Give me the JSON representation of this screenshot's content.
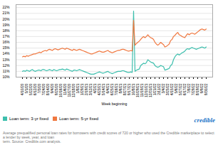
{
  "chart_data": {
    "type": "line",
    "xlabel": "Week beginning",
    "categories": [
      "4/10/20",
      null,
      null,
      "5/1/20",
      null,
      null,
      "5/22/20",
      null,
      null,
      "6/12/20",
      null,
      null,
      "7/3/20",
      null,
      null,
      "7/24/20",
      null,
      null,
      "8/14/20",
      null,
      null,
      "9/4/20",
      null,
      null,
      "9/25/20",
      null,
      null,
      "10/16/20",
      null,
      null,
      "11/6/20",
      null,
      null,
      "11/27/20",
      null,
      null,
      "12/18/20",
      null,
      null,
      "1/8/21",
      null,
      null,
      "1/29/21",
      null,
      null,
      "2/19/21",
      null,
      null,
      "3/12/21",
      null,
      null,
      "4/2/21",
      null,
      null,
      "4/23/21",
      null,
      null,
      "5/14/21",
      null,
      null,
      "6/4/21",
      null,
      null,
      "6/25/21",
      null,
      null,
      "7/16/21",
      null,
      null,
      "8/6/21",
      null,
      null,
      "8/27/21",
      null,
      null,
      "9/17/21",
      null,
      null,
      "10/8/21",
      null,
      null,
      "10/29/21",
      null,
      null,
      "11/19/21",
      null,
      null,
      "12/10/21",
      null,
      null,
      "12/31/21",
      null,
      null,
      "1/21/22",
      null,
      null,
      "2/11/22",
      null,
      null,
      "3/4/22",
      null,
      null,
      "3/25/22",
      null,
      null,
      "4/15/22",
      null,
      null,
      "5/6/22",
      null,
      null,
      "5/27/22",
      null,
      null,
      "6/17/22",
      null,
      null,
      "7/8/22",
      null,
      null,
      "7/29/22",
      null,
      null,
      "8/19/22",
      null,
      null,
      "9/9/22",
      null,
      null,
      "9/30/22"
    ],
    "series": [
      {
        "name": "Loan term: 3-yr fixed",
        "color": "#3dbfad",
        "values": [
          0.11,
          0.111,
          0.11,
          0.112,
          0.111,
          0.11,
          0.112,
          0.113,
          0.111,
          0.11,
          0.111,
          0.112,
          0.112,
          0.111,
          0.113,
          0.113,
          0.112,
          0.111,
          0.112,
          0.113,
          0.112,
          0.111,
          0.113,
          0.112,
          0.111,
          0.112,
          0.113,
          0.113,
          0.114,
          0.113,
          0.112,
          0.114,
          0.113,
          0.112,
          0.111,
          0.11,
          0.112,
          0.112,
          0.111,
          0.112,
          0.113,
          0.112,
          0.111,
          0.11,
          0.109,
          0.108,
          0.107,
          0.106,
          0.105,
          0.105,
          0.105,
          0.106,
          0.107,
          0.108,
          0.109,
          0.108,
          0.107,
          0.107,
          0.108,
          0.109,
          0.11,
          0.108,
          0.107,
          0.106,
          0.107,
          0.108,
          0.109,
          0.11,
          0.11,
          0.11,
          0.111,
          0.111,
          0.11,
          0.109,
          0.108,
          0.108,
          0.109,
          0.108,
          0.214,
          0.11,
          0.112,
          0.113,
          0.114,
          0.12,
          0.122,
          0.124,
          0.123,
          0.125,
          0.13,
          0.128,
          0.126,
          0.125,
          0.124,
          0.12,
          0.118,
          0.117,
          0.118,
          0.12,
          0.119,
          0.118,
          0.112,
          0.113,
          0.114,
          0.115,
          0.12,
          0.122,
          0.13,
          0.135,
          0.138,
          0.14,
          0.138,
          0.14,
          0.142,
          0.143,
          0.145,
          0.148,
          0.149,
          0.148,
          0.15,
          0.151,
          0.15,
          0.149,
          0.148,
          0.149,
          0.15,
          0.151,
          0.152,
          0.151,
          0.15,
          0.152
        ]
      },
      {
        "name": "Loan term: 5-yr fixed",
        "color": "#f07840",
        "values": [
          0.135,
          0.136,
          0.135,
          0.137,
          0.136,
          0.137,
          0.138,
          0.139,
          0.14,
          0.14,
          0.141,
          0.142,
          0.143,
          0.142,
          0.144,
          0.145,
          0.146,
          0.145,
          0.147,
          0.148,
          0.147,
          0.146,
          0.148,
          0.149,
          0.148,
          0.147,
          0.148,
          0.149,
          0.15,
          0.149,
          0.148,
          0.15,
          0.149,
          0.148,
          0.147,
          0.146,
          0.148,
          0.147,
          0.146,
          0.147,
          0.148,
          0.147,
          0.146,
          0.145,
          0.144,
          0.143,
          0.142,
          0.141,
          0.14,
          0.14,
          0.141,
          0.142,
          0.143,
          0.144,
          0.145,
          0.144,
          0.143,
          0.143,
          0.144,
          0.145,
          0.146,
          0.144,
          0.143,
          0.142,
          0.143,
          0.144,
          0.145,
          0.146,
          0.146,
          0.147,
          0.148,
          0.148,
          0.147,
          0.146,
          0.145,
          0.145,
          0.146,
          0.145,
          0.198,
          0.155,
          0.158,
          0.16,
          0.162,
          0.165,
          0.168,
          0.17,
          0.168,
          0.17,
          0.173,
          0.17,
          0.168,
          0.167,
          0.165,
          0.16,
          0.157,
          0.155,
          0.157,
          0.16,
          0.158,
          0.156,
          0.152,
          0.153,
          0.155,
          0.157,
          0.163,
          0.165,
          0.17,
          0.172,
          0.175,
          0.177,
          0.173,
          0.172,
          0.17,
          0.169,
          0.168,
          0.172,
          0.175,
          0.173,
          0.175,
          0.176,
          0.175,
          0.174,
          0.176,
          0.178,
          0.18,
          0.182,
          0.183,
          0.182,
          0.181,
          0.183
        ]
      }
    ],
    "ylim": [
      0.1,
      0.225
    ],
    "yticks": [
      {
        "value": 0.1,
        "label": "10%"
      },
      {
        "value": 0.11,
        "label": "11%"
      },
      {
        "value": 0.12,
        "label": "12%"
      },
      {
        "value": 0.13,
        "label": "13%"
      },
      {
        "value": 0.14,
        "label": "14%"
      },
      {
        "value": 0.15,
        "label": "15%"
      },
      {
        "value": 0.16,
        "label": "16%"
      },
      {
        "value": 0.17,
        "label": "17%"
      },
      {
        "value": 0.18,
        "label": "18%"
      },
      {
        "value": 0.19,
        "label": "19%"
      },
      {
        "value": 0.2,
        "label": "20%"
      },
      {
        "value": 0.21,
        "label": "21%"
      },
      {
        "value": 0.22,
        "label": "22%"
      }
    ],
    "grid": true,
    "legend": "bottom",
    "caption": "Average prequalified personal loan rates for borrowers with credit scores of 720 or higher who used the Credible marketplace to select a lender by week, year, and loan\nterm. Source: Credible.com analysis.",
    "annotations": [
      {
        "text": "credible",
        "color": "#1a73c7"
      }
    ]
  }
}
